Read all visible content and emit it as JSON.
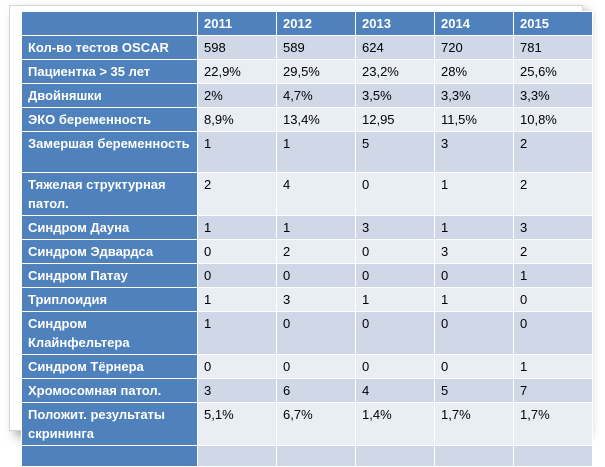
{
  "table": {
    "header": [
      "",
      "2011",
      "2012",
      "2013",
      "2014",
      "2015"
    ],
    "rows": [
      {
        "label": "Кол-во тестов OSCAR",
        "values": [
          "598",
          "589",
          "624",
          "720",
          "781"
        ]
      },
      {
        "label": "Пациентка > 35 лет",
        "values": [
          "22,9%",
          "29,5%",
          "23,2%",
          "28%",
          "25,6%"
        ]
      },
      {
        "label": "Двойняшки",
        "values": [
          "2%",
          "4,7%",
          "3,5%",
          "3,3%",
          "3,3%"
        ]
      },
      {
        "label": "ЭКО беременность",
        "values": [
          "8,9%",
          "13,4%",
          "12,95",
          "11,5%",
          "10,8%"
        ]
      },
      {
        "label": "Замершая беременность",
        "values": [
          "1",
          "1",
          "5",
          "3",
          "2"
        ]
      },
      {
        "label": "Тяжелая структурная патол.",
        "values": [
          "2",
          "4",
          "0",
          "1",
          "2"
        ]
      },
      {
        "label": "Синдром Дауна",
        "values": [
          "1",
          "1",
          "3",
          "1",
          "3"
        ]
      },
      {
        "label": "Синдром Эдвардса",
        "values": [
          "0",
          "2",
          "0",
          "3",
          "2"
        ]
      },
      {
        "label": "Синдром Патау",
        "values": [
          "0",
          "0",
          "0",
          "0",
          "1"
        ]
      },
      {
        "label": "Триплоидия",
        "values": [
          "1",
          "3",
          "1",
          "1",
          "0"
        ]
      },
      {
        "label": "Синдром Клайнфельтера",
        "values": [
          "1",
          "0",
          "0",
          "0",
          "0"
        ]
      },
      {
        "label": "Синдром Тёрнера",
        "values": [
          "0",
          "0",
          "0",
          "0",
          "1"
        ]
      },
      {
        "label": "Хромосомная патол.",
        "values": [
          "3",
          "6",
          "4",
          "5",
          "7"
        ]
      },
      {
        "label": "Положит. результаты скрининга",
        "values": [
          "5,1%",
          "6,7%",
          "1,4%",
          "1,7%",
          "1,7%"
        ]
      },
      {
        "label": "",
        "values": [
          "",
          "",
          "",
          "",
          ""
        ]
      }
    ]
  }
}
